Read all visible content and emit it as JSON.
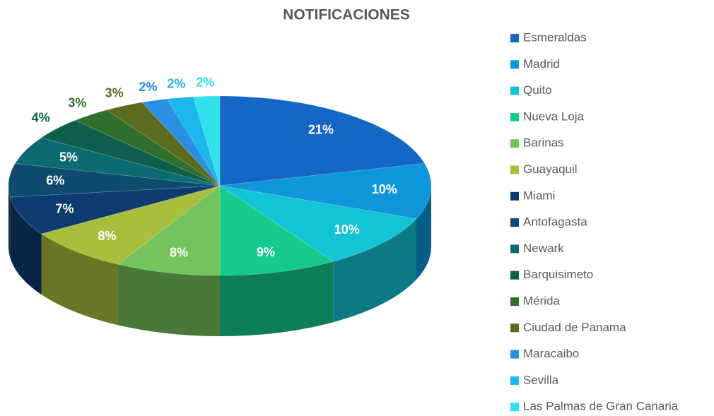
{
  "chart_data": {
    "type": "pie3d",
    "title": "NOTIFICACIONES",
    "categories": [
      "Esmeraldas",
      "Madrid",
      "Quito",
      "Nueva Loja",
      "Barinas",
      "Guayaquil",
      "Miami",
      "Antofagasta",
      "Newark",
      "Barquisimeto",
      "Mérida",
      "Ciudad de Panama",
      "Maracaibo",
      "Sevilla",
      "Las Palmas de Gran Canaria"
    ],
    "values": [
      21,
      10,
      10,
      9,
      8,
      8,
      7,
      6,
      5,
      4,
      3,
      3,
      2,
      2,
      2
    ],
    "value_labels": [
      "21%",
      "10%",
      "10%",
      "9%",
      "8%",
      "8%",
      "7%",
      "6%",
      "5%",
      "4%",
      "3%",
      "3%",
      "2%",
      "2%",
      "2%"
    ],
    "colors": [
      "#1467c2",
      "#0d97da",
      "#12c4d6",
      "#15cb8c",
      "#74c35c",
      "#a9be3c",
      "#0e3c70",
      "#0f4b70",
      "#0c6b70",
      "#0d5f4b",
      "#2f6f2b",
      "#5b6b1f",
      "#2a8ee2",
      "#1bb7ea",
      "#30e1eb"
    ]
  }
}
